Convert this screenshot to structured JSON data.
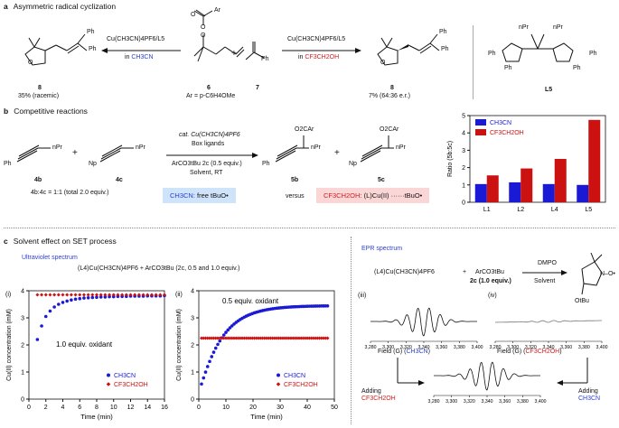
{
  "panel_a": {
    "label": "a",
    "title": "Asymmetric radical cyclization",
    "left_catalyst": "Cu(CH3CN)4PF6/L5",
    "left_solvent_prefix": "in ",
    "left_solvent": "CH3CN",
    "right_catalyst": "Cu(CH3CN)4PF6/L5",
    "right_solvent_prefix": "in ",
    "right_solvent": "CF3CH2OH",
    "left_product_id": "8",
    "left_product_yield": "35% (racemic)",
    "center_compound_6": "6",
    "center_compound_7": "7",
    "center_ar_def": "Ar = p-C6H4OMe",
    "plus": "+",
    "right_product_id": "8",
    "right_product_yield": "7% (64:36 e.r.)",
    "ligand_id": "L5",
    "ar_label": "Ar",
    "ph": "Ph",
    "ipr": "nPr"
  },
  "panel_b": {
    "label": "b",
    "title": "Competitive reactions",
    "cat_line": "cat. Cu(CH3CN)4PF6",
    "ligands_line": "Box ligands",
    "oxidant_line": "ArCO3tBu 2c (0.5 equiv.)",
    "conditions_line": "Solvent, RT",
    "sub_4b": "4b",
    "sub_4c": "4c",
    "prod_5b": "5b",
    "prod_5c": "5c",
    "ratio_note": "4b:4c = 1:1 (total 2.0 equiv.)",
    "box_left_solvent": "CH3CN:",
    "box_left_text": "free tBuO•",
    "versus": "versus",
    "box_right_solvent": "CF3CH2OH:",
    "box_right_text": "(L)Cu(II) ······tBuO•",
    "o2car": "O2CAr",
    "npr": "nPr",
    "ph": "Ph",
    "np": "Np"
  },
  "chart_ratio": {
    "ylabel": "Ratio (5b:5c)",
    "legend": [
      "CH3CN",
      "CF3CH2OH"
    ],
    "yticks": [
      "0",
      "1",
      "2",
      "3",
      "4",
      "5"
    ]
  },
  "panel_c": {
    "label": "c",
    "title": "Solvent effect on SET process",
    "uv_title": "Ultraviolet spectrum",
    "uv_equation": "(L4)Cu(CH3CN)4PF6 + ArCO3tBu (2c, 0.5 and 1.0 equiv.)",
    "epr_title": "EPR spectrum",
    "epr_reagent1": "(L4)Cu(CH3CN)4PF6",
    "epr_plus": "+",
    "epr_reagent2": "ArCO3tBu",
    "epr_reagent2_sub": "2c (1.0 equiv.)",
    "dmpo": "DMPO",
    "solvent": "Solvent",
    "trap_label": "OtBu",
    "panel_iii": "(iii)",
    "panel_iv": "(iv)",
    "field_ch3cn_prefix": "Field (G) (",
    "field_ch3cn": "CH3CN",
    "field_cf3_prefix": "Field (G) (",
    "field_cf3": "CF3CH2OH",
    "field_suffix": ")",
    "adding_left": "Adding",
    "adding_left_solvent": "CF3CH2OH",
    "adding_right": "Adding",
    "adding_right_solvent": "CH3CN",
    "epr_ticks": [
      "3,280",
      "3,300",
      "3,320",
      "3,340",
      "3,360",
      "3,380",
      "3,400"
    ]
  },
  "chart_data": [
    {
      "type": "bar",
      "categories": [
        "L1",
        "L2",
        "L4",
        "L5"
      ],
      "series": [
        {
          "name": "CH3CN",
          "values": [
            1.05,
            1.15,
            1.05,
            1.0
          ],
          "color": "#1a1ad6"
        },
        {
          "name": "CF3CH2OH",
          "values": [
            1.55,
            1.95,
            2.5,
            4.75
          ],
          "color": "#cc1111"
        }
      ],
      "ylabel": "Ratio (5b:5c)",
      "ylim": [
        0,
        5
      ],
      "legend": "top-left"
    },
    {
      "type": "scatter",
      "panel_label": "(i)",
      "annotation": "1.0 equiv. oxidant",
      "xlabel": "Time (min)",
      "ylabel": "Cu(II) concentration (mM)",
      "xlim": [
        0,
        16
      ],
      "ylim": [
        0,
        4
      ],
      "xticks": [
        0,
        2,
        4,
        6,
        8,
        10,
        12,
        14,
        16
      ],
      "yticks": [
        0,
        1,
        2,
        3,
        4
      ],
      "legend": "bottom-right",
      "series": [
        {
          "name": "CH3CN",
          "color": "#1a1ad6",
          "marker": "circle",
          "x": [
            1,
            1.5,
            2,
            2.5,
            3,
            3.5,
            4,
            4.5,
            5,
            5.5,
            6,
            6.5,
            7,
            7.5,
            8,
            8.5,
            9,
            9.5,
            10,
            10.5,
            11,
            11.5,
            12,
            12.5,
            13,
            13.5,
            14,
            14.5,
            15,
            15.5,
            16
          ],
          "y": [
            2.2,
            2.7,
            3.05,
            3.25,
            3.4,
            3.5,
            3.57,
            3.62,
            3.66,
            3.69,
            3.71,
            3.73,
            3.74,
            3.75,
            3.76,
            3.77,
            3.77,
            3.78,
            3.78,
            3.79,
            3.79,
            3.79,
            3.8,
            3.8,
            3.8,
            3.8,
            3.81,
            3.81,
            3.81,
            3.81,
            3.82
          ]
        },
        {
          "name": "CF3CH2OH",
          "color": "#cc1111",
          "marker": "diamond",
          "x": [
            1,
            1.5,
            2,
            2.5,
            3,
            3.5,
            4,
            4.5,
            5,
            5.5,
            6,
            6.5,
            7,
            7.5,
            8,
            8.5,
            9,
            9.5,
            10,
            10.5,
            11,
            11.5,
            12,
            12.5,
            13,
            13.5,
            14,
            14.5,
            15,
            15.5,
            16
          ],
          "y": [
            3.85,
            3.85,
            3.85,
            3.85,
            3.85,
            3.85,
            3.85,
            3.85,
            3.85,
            3.85,
            3.85,
            3.85,
            3.85,
            3.85,
            3.85,
            3.85,
            3.85,
            3.85,
            3.85,
            3.85,
            3.85,
            3.85,
            3.85,
            3.85,
            3.85,
            3.85,
            3.85,
            3.85,
            3.85,
            3.85,
            3.85
          ]
        }
      ]
    },
    {
      "type": "scatter",
      "panel_label": "(ii)",
      "annotation": "0.5 equiv. oxidant",
      "xlabel": "Time (min)",
      "ylabel": "Cu(II) concentration (mM)",
      "xlim": [
        0,
        50
      ],
      "ylim": [
        0,
        4
      ],
      "xticks": [
        0,
        10,
        20,
        30,
        40,
        50
      ],
      "yticks": [
        0,
        1,
        2,
        3,
        4
      ],
      "legend": "bottom-right",
      "series": [
        {
          "name": "CH3CN",
          "color": "#1a1ad6",
          "marker": "circle",
          "x": [],
          "y": [],
          "model": "curve"
        },
        {
          "name": "CF3CH2OH",
          "color": "#cc1111",
          "marker": "diamond",
          "x": [],
          "y": [],
          "model": "flat",
          "level": 2.25
        }
      ]
    }
  ]
}
